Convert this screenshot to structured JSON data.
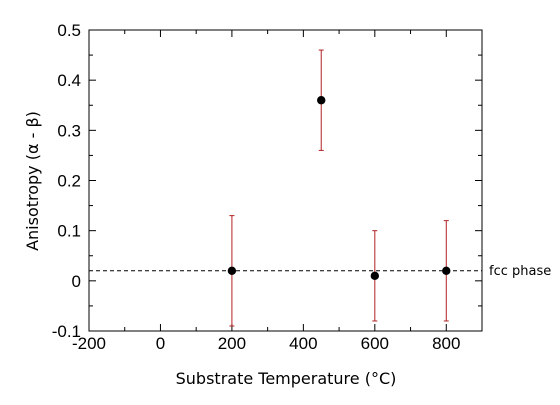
{
  "chart_data": {
    "type": "scatter",
    "xlabel": "Substrate Temperature (°C)",
    "ylabel": "Anisotropy (α - β)",
    "xlim": [
      -200,
      900
    ],
    "ylim": [
      -0.1,
      0.5
    ],
    "x_ticks": [
      -200,
      0,
      200,
      400,
      600,
      800
    ],
    "x_tick_labels": [
      "-200",
      "0",
      "200",
      "400",
      "600",
      "800"
    ],
    "y_ticks": [
      -0.1,
      0,
      0.1,
      0.2,
      0.3,
      0.4,
      0.5
    ],
    "y_tick_labels": [
      "-0.1",
      "0",
      "0.1",
      "0.2",
      "0.3",
      "0.4",
      "0.5"
    ],
    "grid": false,
    "series": [
      {
        "x": [
          200,
          450,
          600,
          800
        ],
        "y": [
          0.02,
          0.36,
          0.01,
          0.02
        ],
        "error_low": [
          0.11,
          0.1,
          0.09,
          0.1
        ],
        "error_high": [
          0.11,
          0.1,
          0.09,
          0.1
        ],
        "marker_color": "#000000",
        "error_color": "#b22222"
      }
    ],
    "reference_line": {
      "y": 0.02,
      "style": "dashed",
      "label": "fcc phase"
    }
  }
}
